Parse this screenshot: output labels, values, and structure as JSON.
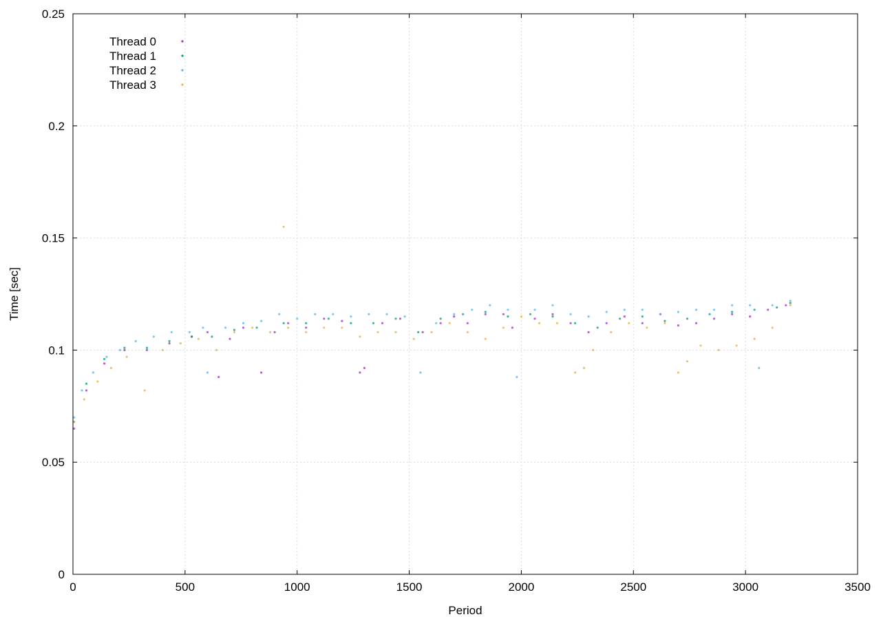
{
  "chart_data": {
    "type": "scatter",
    "title": "",
    "xlabel": "Period",
    "ylabel": "Time [sec]",
    "xlim": [
      0,
      3500
    ],
    "ylim": [
      0,
      0.25
    ],
    "x_ticks": [
      0,
      500,
      1000,
      1500,
      2000,
      2500,
      3000,
      3500
    ],
    "x_tick_labels": [
      "0",
      "500",
      "1000",
      "1500",
      "2000",
      "2500",
      "3000",
      "3500"
    ],
    "y_ticks": [
      0,
      0.05,
      0.1,
      0.15,
      0.2,
      0.25
    ],
    "y_tick_labels": [
      "0",
      "0.05",
      "0.1",
      "0.15",
      "0.2",
      "0.25"
    ],
    "grid": true,
    "legend_position": "top-left",
    "series": [
      {
        "name": "Thread 0",
        "color": "#9a2fc4",
        "marker": "dot",
        "x": [
          5,
          60,
          140,
          230,
          330,
          430,
          530,
          600,
          650,
          700,
          760,
          840,
          900,
          960,
          1040,
          1120,
          1200,
          1280,
          1300,
          1380,
          1460,
          1560,
          1640,
          1700,
          1760,
          1840,
          1920,
          1960,
          2060,
          2140,
          2220,
          2300,
          2380,
          2460,
          2540,
          2620,
          2700,
          2780,
          2860,
          2940,
          3020,
          3100,
          3180
        ],
        "y": [
          0.065,
          0.082,
          0.094,
          0.1,
          0.1,
          0.103,
          0.106,
          0.108,
          0.088,
          0.105,
          0.11,
          0.09,
          0.108,
          0.112,
          0.11,
          0.114,
          0.113,
          0.09,
          0.092,
          0.112,
          0.114,
          0.108,
          0.112,
          0.115,
          0.112,
          0.116,
          0.116,
          0.11,
          0.114,
          0.116,
          0.112,
          0.108,
          0.112,
          0.115,
          0.112,
          0.116,
          0.111,
          0.112,
          0.114,
          0.116,
          0.115,
          0.118,
          0.12
        ]
      },
      {
        "name": "Thread 1",
        "color": "#009e73",
        "marker": "dot",
        "x": [
          5,
          60,
          140,
          230,
          330,
          430,
          530,
          620,
          720,
          820,
          940,
          1040,
          1140,
          1240,
          1340,
          1440,
          1540,
          1640,
          1740,
          1840,
          1940,
          2040,
          2140,
          2240,
          2340,
          2440,
          2540,
          2640,
          2740,
          2840,
          2940,
          3040,
          3140,
          3200
        ],
        "y": [
          0.068,
          0.085,
          0.096,
          0.101,
          0.101,
          0.104,
          0.106,
          0.106,
          0.109,
          0.11,
          0.112,
          0.112,
          0.114,
          0.112,
          0.112,
          0.114,
          0.108,
          0.114,
          0.116,
          0.117,
          0.115,
          0.116,
          0.115,
          0.112,
          0.11,
          0.114,
          0.115,
          0.113,
          0.114,
          0.116,
          0.117,
          0.118,
          0.119,
          0.121
        ]
      },
      {
        "name": "Thread 2",
        "color": "#56b4e9",
        "marker": "dot",
        "x": [
          5,
          40,
          90,
          150,
          210,
          280,
          360,
          440,
          520,
          580,
          600,
          680,
          760,
          840,
          920,
          1000,
          1080,
          1160,
          1240,
          1320,
          1400,
          1480,
          1550,
          1620,
          1700,
          1780,
          1860,
          1940,
          1980,
          2060,
          2140,
          2220,
          2300,
          2380,
          2460,
          2540,
          2620,
          2700,
          2780,
          2860,
          2940,
          3020,
          3060,
          3120,
          3200
        ],
        "y": [
          0.07,
          0.082,
          0.09,
          0.097,
          0.1,
          0.104,
          0.106,
          0.108,
          0.108,
          0.11,
          0.09,
          0.11,
          0.112,
          0.113,
          0.116,
          0.114,
          0.116,
          0.116,
          0.115,
          0.116,
          0.116,
          0.115,
          0.09,
          0.112,
          0.116,
          0.118,
          0.12,
          0.118,
          0.088,
          0.118,
          0.12,
          0.116,
          0.115,
          0.117,
          0.118,
          0.118,
          0.116,
          0.117,
          0.118,
          0.118,
          0.12,
          0.12,
          0.092,
          0.12,
          0.122
        ]
      },
      {
        "name": "Thread 3",
        "color": "#e6b040",
        "marker": "dot",
        "x": [
          5,
          50,
          110,
          170,
          240,
          320,
          400,
          480,
          560,
          640,
          720,
          800,
          880,
          940,
          960,
          1040,
          1120,
          1200,
          1280,
          1360,
          1440,
          1520,
          1600,
          1680,
          1760,
          1840,
          1920,
          2000,
          2080,
          2160,
          2240,
          2280,
          2320,
          2400,
          2480,
          2560,
          2640,
          2700,
          2740,
          2800,
          2880,
          2960,
          3040,
          3120,
          3200
        ],
        "y": [
          0.068,
          0.078,
          0.086,
          0.092,
          0.097,
          0.082,
          0.1,
          0.103,
          0.105,
          0.1,
          0.108,
          0.11,
          0.108,
          0.155,
          0.11,
          0.108,
          0.11,
          0.11,
          0.106,
          0.108,
          0.108,
          0.105,
          0.108,
          0.112,
          0.108,
          0.105,
          0.11,
          0.115,
          0.112,
          0.112,
          0.09,
          0.092,
          0.1,
          0.108,
          0.112,
          0.11,
          0.112,
          0.09,
          0.095,
          0.102,
          0.1,
          0.102,
          0.105,
          0.11,
          0.12
        ]
      }
    ]
  }
}
